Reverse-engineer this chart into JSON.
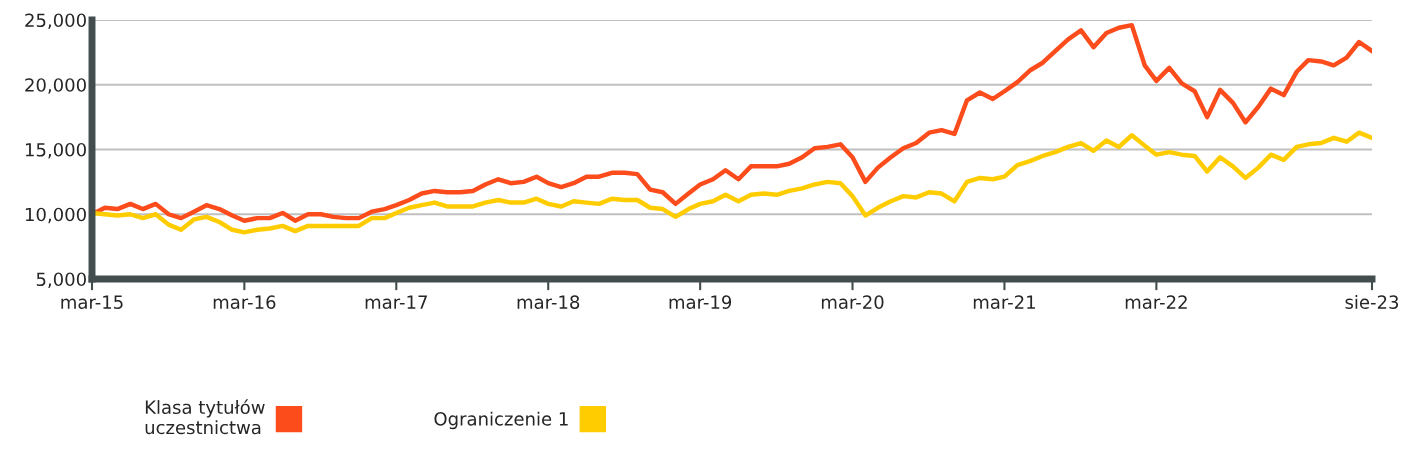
{
  "chart_data": {
    "type": "line",
    "x": [
      "2015-03",
      "2015-04",
      "2015-05",
      "2015-06",
      "2015-07",
      "2015-08",
      "2015-09",
      "2015-10",
      "2015-11",
      "2015-12",
      "2016-01",
      "2016-02",
      "2016-03",
      "2016-04",
      "2016-05",
      "2016-06",
      "2016-07",
      "2016-08",
      "2016-09",
      "2016-10",
      "2016-11",
      "2016-12",
      "2017-01",
      "2017-02",
      "2017-03",
      "2017-04",
      "2017-05",
      "2017-06",
      "2017-07",
      "2017-08",
      "2017-09",
      "2017-10",
      "2017-11",
      "2017-12",
      "2018-01",
      "2018-02",
      "2018-03",
      "2018-04",
      "2018-05",
      "2018-06",
      "2018-07",
      "2018-08",
      "2018-09",
      "2018-10",
      "2018-11",
      "2018-12",
      "2019-01",
      "2019-02",
      "2019-03",
      "2019-04",
      "2019-05",
      "2019-06",
      "2019-07",
      "2019-08",
      "2019-09",
      "2019-10",
      "2019-11",
      "2019-12",
      "2020-01",
      "2020-02",
      "2020-03",
      "2020-04",
      "2020-05",
      "2020-06",
      "2020-07",
      "2020-08",
      "2020-09",
      "2020-10",
      "2020-11",
      "2020-12",
      "2021-01",
      "2021-02",
      "2021-03",
      "2021-04",
      "2021-05",
      "2021-06",
      "2021-07",
      "2021-08",
      "2021-09",
      "2021-10",
      "2021-11",
      "2021-12",
      "2022-01",
      "2022-02",
      "2022-03",
      "2022-04",
      "2022-05",
      "2022-06",
      "2022-07",
      "2022-08",
      "2022-09",
      "2022-10",
      "2022-11",
      "2022-12",
      "2023-01",
      "2023-02",
      "2023-03",
      "2023-04",
      "2023-05",
      "2023-06",
      "2023-07",
      "2023-08"
    ],
    "series": [
      {
        "name": "Klasa tytułów\nuczestnictwa",
        "color": "#fc4c1c",
        "values": [
          10000,
          10500,
          10400,
          10800,
          10400,
          10800,
          10000,
          9700,
          10200,
          10700,
          10400,
          9900,
          9500,
          9700,
          9700,
          10100,
          9500,
          10000,
          10000,
          9800,
          9700,
          9700,
          10200,
          10400,
          10700,
          11100,
          11600,
          11800,
          11700,
          11700,
          11800,
          12300,
          12700,
          12400,
          12500,
          12900,
          12400,
          12100,
          12400,
          12900,
          12900,
          13200,
          13200,
          13100,
          11900,
          11700,
          10800,
          11600,
          12300,
          12700,
          13400,
          12700,
          13700,
          13700,
          13700,
          13900,
          14400,
          15100,
          15200,
          15400,
          14400,
          12500,
          13600,
          14400,
          15100,
          15500,
          16300,
          16500,
          16200,
          18800,
          19400,
          18900,
          19500,
          20200,
          21100,
          21700,
          22600,
          23500,
          24200,
          22900,
          24000,
          24400,
          24600,
          21500,
          20300,
          21300,
          20100,
          19500,
          17500,
          19600,
          18600,
          17100,
          18300,
          19700,
          19200,
          21000,
          21900,
          21800,
          21500,
          22100,
          23300,
          22600
        ]
      },
      {
        "name": "Ograniczenie 1",
        "color": "#ffcc00",
        "values": [
          10100,
          10000,
          9900,
          10000,
          9700,
          10000,
          9200,
          8800,
          9600,
          9800,
          9400,
          8800,
          8600,
          8800,
          8900,
          9100,
          8700,
          9100,
          9100,
          9100,
          9100,
          9100,
          9700,
          9700,
          10100,
          10500,
          10700,
          10900,
          10600,
          10600,
          10600,
          10900,
          11100,
          10900,
          10900,
          11200,
          10800,
          10600,
          11000,
          10900,
          10800,
          11200,
          11100,
          11100,
          10500,
          10400,
          9800,
          10400,
          10800,
          11000,
          11500,
          11000,
          11500,
          11600,
          11500,
          11800,
          12000,
          12300,
          12500,
          12400,
          11400,
          9900,
          10500,
          11000,
          11400,
          11300,
          11700,
          11600,
          11000,
          12500,
          12800,
          12700,
          12900,
          13800,
          14100,
          14500,
          14800,
          15200,
          15500,
          14900,
          15700,
          15200,
          16100,
          15300,
          14600,
          14800,
          14600,
          14500,
          13300,
          14400,
          13700,
          12800,
          13600,
          14600,
          14200,
          15200,
          15400,
          15500,
          15900,
          15600,
          16300,
          15900
        ]
      }
    ],
    "xlim": [
      "2015-03",
      "2023-08"
    ],
    "xticks": [
      {
        "value": "2015-03",
        "label": "mar-15"
      },
      {
        "value": "2016-03",
        "label": "mar-16"
      },
      {
        "value": "2017-03",
        "label": "mar-17"
      },
      {
        "value": "2018-03",
        "label": "mar-18"
      },
      {
        "value": "2019-03",
        "label": "mar-19"
      },
      {
        "value": "2020-03",
        "label": "mar-20"
      },
      {
        "value": "2021-03",
        "label": "mar-21"
      },
      {
        "value": "2022-03",
        "label": "mar-22"
      },
      {
        "value": "2023-08",
        "label": "sie-23"
      }
    ],
    "ylim": [
      5000,
      25000
    ],
    "yticks": [
      {
        "value": 5000,
        "label": "5,000"
      },
      {
        "value": 10000,
        "label": "10,000"
      },
      {
        "value": 15000,
        "label": "15,000"
      },
      {
        "value": 20000,
        "label": "20,000"
      },
      {
        "value": 25000,
        "label": "25,000"
      }
    ],
    "grid": "y",
    "legend": "bottom left",
    "marker": "none",
    "line_style": "solid"
  }
}
